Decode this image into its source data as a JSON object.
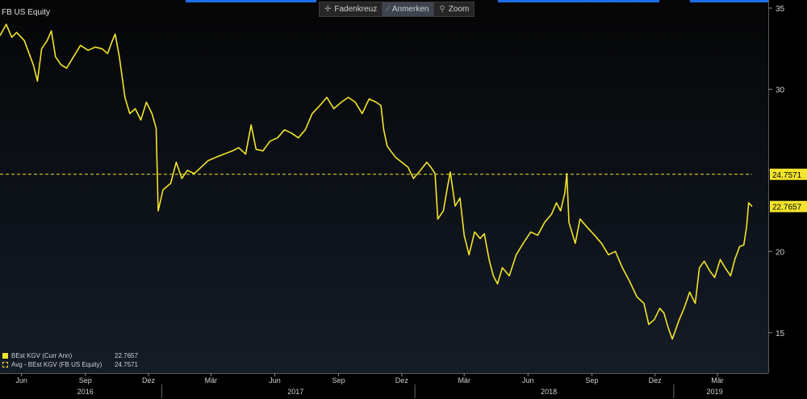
{
  "title": "FB US Equity",
  "toolbar": [
    {
      "label": "Fadenkreuz",
      "icon": "crosshair-icon"
    },
    {
      "label": "Anmerken",
      "icon": "pencil-icon"
    },
    {
      "label": "Zoom",
      "icon": "magnifier-icon"
    }
  ],
  "colors": {
    "line": "#f2e42c",
    "avg": "#f2e42c",
    "text": "#d9d9d9",
    "accent": "#1e6fe8"
  },
  "chart_data": {
    "type": "line",
    "ylim": [
      12.5,
      35.5
    ],
    "y_ticks": [
      15,
      20,
      25,
      30,
      35
    ],
    "y_tick_labels": [
      "15",
      "20",
      "",
      "30",
      "35"
    ],
    "x_range": [
      "2016-05-01",
      "2019-04-20"
    ],
    "x_month_ticks": [
      {
        "label": "Jun",
        "date": "2016-06-01"
      },
      {
        "label": "Sep",
        "date": "2016-09-01"
      },
      {
        "label": "Dez",
        "date": "2016-12-01"
      },
      {
        "label": "Mär",
        "date": "2017-03-01"
      },
      {
        "label": "Jun",
        "date": "2017-06-01"
      },
      {
        "label": "Sep",
        "date": "2017-09-01"
      },
      {
        "label": "Dez",
        "date": "2017-12-01"
      },
      {
        "label": "Mär",
        "date": "2018-03-01"
      },
      {
        "label": "Jun",
        "date": "2018-06-01"
      },
      {
        "label": "Sep",
        "date": "2018-09-01"
      },
      {
        "label": "Dez",
        "date": "2018-12-01"
      },
      {
        "label": "Mär",
        "date": "2019-03-01"
      }
    ],
    "x_year_labels": [
      {
        "label": "2016",
        "date": "2016-09-01"
      },
      {
        "label": "2017",
        "date": "2017-07-01"
      },
      {
        "label": "2018",
        "date": "2018-07-01"
      },
      {
        "label": "2019",
        "date": "2019-02-25"
      }
    ],
    "x_year_boundaries": [
      "2016-12-20",
      "2017-12-20",
      "2018-12-28"
    ],
    "series": [
      {
        "name": "BEst KGV (Curr Ann)",
        "last": "22.7657",
        "points": [
          [
            "2016-05-01",
            33.3
          ],
          [
            "2016-05-10",
            34.0
          ],
          [
            "2016-05-18",
            33.2
          ],
          [
            "2016-05-25",
            33.5
          ],
          [
            "2016-06-05",
            33.0
          ],
          [
            "2016-06-12",
            32.2
          ],
          [
            "2016-06-18",
            31.5
          ],
          [
            "2016-06-24",
            30.5
          ],
          [
            "2016-06-30",
            32.5
          ],
          [
            "2016-07-08",
            33.0
          ],
          [
            "2016-07-14",
            33.6
          ],
          [
            "2016-07-20",
            32.0
          ],
          [
            "2016-07-28",
            31.5
          ],
          [
            "2016-08-05",
            31.3
          ],
          [
            "2016-08-15",
            32.0
          ],
          [
            "2016-08-25",
            32.7
          ],
          [
            "2016-09-05",
            32.4
          ],
          [
            "2016-09-15",
            32.6
          ],
          [
            "2016-09-25",
            32.5
          ],
          [
            "2016-10-03",
            32.2
          ],
          [
            "2016-10-10",
            33.0
          ],
          [
            "2016-10-14",
            33.4
          ],
          [
            "2016-10-20",
            32.0
          ],
          [
            "2016-10-28",
            29.5
          ],
          [
            "2016-11-04",
            28.5
          ],
          [
            "2016-11-12",
            28.8
          ],
          [
            "2016-11-20",
            28.1
          ],
          [
            "2016-11-28",
            29.2
          ],
          [
            "2016-12-06",
            28.5
          ],
          [
            "2016-12-12",
            27.6
          ],
          [
            "2016-12-15",
            22.5
          ],
          [
            "2016-12-22",
            23.8
          ],
          [
            "2017-01-02",
            24.2
          ],
          [
            "2017-01-10",
            25.5
          ],
          [
            "2017-01-18",
            24.5
          ],
          [
            "2017-01-26",
            25.0
          ],
          [
            "2017-02-05",
            24.8
          ],
          [
            "2017-02-15",
            25.2
          ],
          [
            "2017-02-25",
            25.6
          ],
          [
            "2017-03-08",
            25.8
          ],
          [
            "2017-03-20",
            26.0
          ],
          [
            "2017-04-01",
            26.2
          ],
          [
            "2017-04-10",
            26.4
          ],
          [
            "2017-04-20",
            26.0
          ],
          [
            "2017-04-28",
            27.8
          ],
          [
            "2017-05-05",
            26.3
          ],
          [
            "2017-05-15",
            26.2
          ],
          [
            "2017-05-25",
            26.8
          ],
          [
            "2017-06-05",
            27.0
          ],
          [
            "2017-06-15",
            27.5
          ],
          [
            "2017-06-25",
            27.3
          ],
          [
            "2017-07-05",
            27.0
          ],
          [
            "2017-07-15",
            27.5
          ],
          [
            "2017-07-25",
            28.5
          ],
          [
            "2017-08-05",
            29.0
          ],
          [
            "2017-08-15",
            29.5
          ],
          [
            "2017-08-25",
            28.8
          ],
          [
            "2017-09-05",
            29.2
          ],
          [
            "2017-09-15",
            29.5
          ],
          [
            "2017-09-25",
            29.2
          ],
          [
            "2017-10-05",
            28.5
          ],
          [
            "2017-10-15",
            29.4
          ],
          [
            "2017-10-25",
            29.2
          ],
          [
            "2017-11-01",
            29.0
          ],
          [
            "2017-11-05",
            27.5
          ],
          [
            "2017-11-10",
            26.5
          ],
          [
            "2017-11-15",
            26.2
          ],
          [
            "2017-11-22",
            25.8
          ],
          [
            "2017-12-01",
            25.5
          ],
          [
            "2017-12-10",
            25.2
          ],
          [
            "2017-12-18",
            24.5
          ],
          [
            "2017-12-28",
            25.0
          ],
          [
            "2018-01-06",
            25.5
          ],
          [
            "2018-01-12",
            25.2
          ],
          [
            "2018-01-18",
            24.8
          ],
          [
            "2018-01-22",
            22.0
          ],
          [
            "2018-01-30",
            22.5
          ],
          [
            "2018-02-05",
            24.0
          ],
          [
            "2018-02-09",
            24.9
          ],
          [
            "2018-02-16",
            22.8
          ],
          [
            "2018-02-23",
            23.3
          ],
          [
            "2018-03-01",
            21.0
          ],
          [
            "2018-03-08",
            19.8
          ],
          [
            "2018-03-16",
            21.2
          ],
          [
            "2018-03-24",
            20.8
          ],
          [
            "2018-03-30",
            21.1
          ],
          [
            "2018-04-06",
            19.5
          ],
          [
            "2018-04-12",
            18.5
          ],
          [
            "2018-04-18",
            18.0
          ],
          [
            "2018-04-25",
            19.0
          ],
          [
            "2018-05-05",
            18.5
          ],
          [
            "2018-05-15",
            19.8
          ],
          [
            "2018-05-25",
            20.5
          ],
          [
            "2018-06-05",
            21.2
          ],
          [
            "2018-06-15",
            21.0
          ],
          [
            "2018-06-25",
            21.8
          ],
          [
            "2018-07-05",
            22.3
          ],
          [
            "2018-07-12",
            23.0
          ],
          [
            "2018-07-18",
            22.5
          ],
          [
            "2018-07-24",
            23.6
          ],
          [
            "2018-07-27",
            24.8
          ],
          [
            "2018-07-30",
            21.8
          ],
          [
            "2018-08-08",
            20.5
          ],
          [
            "2018-08-15",
            22.0
          ],
          [
            "2018-08-25",
            21.5
          ],
          [
            "2018-09-05",
            21.0
          ],
          [
            "2018-09-15",
            20.5
          ],
          [
            "2018-09-25",
            19.8
          ],
          [
            "2018-10-05",
            20.0
          ],
          [
            "2018-10-15",
            19.0
          ],
          [
            "2018-10-25",
            18.2
          ],
          [
            "2018-11-05",
            17.2
          ],
          [
            "2018-11-15",
            16.8
          ],
          [
            "2018-11-22",
            15.5
          ],
          [
            "2018-11-30",
            15.8
          ],
          [
            "2018-12-08",
            16.5
          ],
          [
            "2018-12-14",
            16.2
          ],
          [
            "2018-12-20",
            15.3
          ],
          [
            "2018-12-26",
            14.6
          ],
          [
            "2019-01-05",
            15.8
          ],
          [
            "2019-01-12",
            16.5
          ],
          [
            "2019-01-20",
            17.5
          ],
          [
            "2019-01-28",
            16.8
          ],
          [
            "2019-02-03",
            19.0
          ],
          [
            "2019-02-10",
            19.4
          ],
          [
            "2019-02-18",
            18.8
          ],
          [
            "2019-02-25",
            18.4
          ],
          [
            "2019-03-05",
            19.5
          ],
          [
            "2019-03-12",
            19.0
          ],
          [
            "2019-03-20",
            18.5
          ],
          [
            "2019-03-26",
            19.5
          ],
          [
            "2019-04-02",
            20.3
          ],
          [
            "2019-04-08",
            20.4
          ],
          [
            "2019-04-12",
            21.5
          ],
          [
            "2019-04-15",
            23.0
          ],
          [
            "2019-04-20",
            22.77
          ]
        ]
      },
      {
        "name": "Avg - BEst KGV (FB US Equity)",
        "last": "24.7571",
        "value": 24.7571,
        "dashed": true
      }
    ]
  }
}
